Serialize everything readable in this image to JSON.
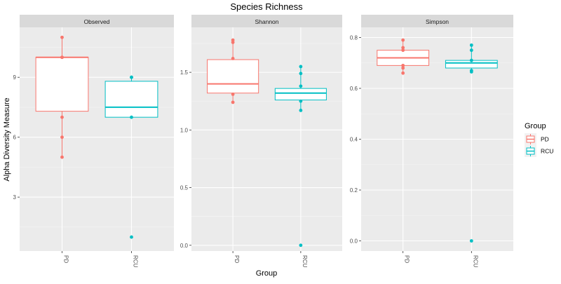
{
  "chart_data": {
    "type": "box",
    "title": "Species Richness",
    "xlabel": "Group",
    "ylabel": "Alpha Diversity Measure",
    "categories": [
      "PD",
      "RCU"
    ],
    "legend": {
      "title": "Group",
      "position": "right",
      "items": [
        {
          "label": "PD",
          "color": "#F8766D"
        },
        {
          "label": "RCU",
          "color": "#00BFC4"
        }
      ]
    },
    "colors": {
      "PD": "#F8766D",
      "RCU": "#00BFC4"
    },
    "panels": [
      {
        "strip": "Observed",
        "ylim": [
          0.3,
          11.5
        ],
        "yticks": [
          3,
          6,
          9
        ],
        "ytick_labels": [
          "3",
          "6",
          "9"
        ],
        "boxes": [
          {
            "group": "PD",
            "min": 5,
            "q1": 7.3,
            "median": 10,
            "q3": 10,
            "max": 11,
            "points": [
              11,
              10,
              10,
              10,
              7,
              6,
              5
            ]
          },
          {
            "group": "RCU",
            "min": 7,
            "q1": 7,
            "median": 7.5,
            "q3": 8.8,
            "max": 9,
            "points": [
              9,
              9,
              7,
              1
            ]
          }
        ]
      },
      {
        "strip": "Shannon",
        "ylim": [
          -0.05,
          1.89
        ],
        "yticks": [
          0,
          0.5,
          1,
          1.5
        ],
        "ytick_labels": [
          "0.0",
          "0.5",
          "1.0",
          "1.5"
        ],
        "boxes": [
          {
            "group": "PD",
            "min": 1.24,
            "q1": 1.32,
            "median": 1.4,
            "q3": 1.61,
            "max": 1.78,
            "points": [
              1.78,
              1.76,
              1.62,
              1.31,
              1.24
            ]
          },
          {
            "group": "RCU",
            "min": 1.17,
            "q1": 1.26,
            "median": 1.32,
            "q3": 1.36,
            "max": 1.55,
            "points": [
              1.55,
              1.49,
              1.38,
              1.25,
              1.17,
              0
            ]
          }
        ]
      },
      {
        "strip": "Simpson",
        "ylim": [
          -0.04,
          0.84
        ],
        "yticks": [
          0,
          0.2,
          0.4,
          0.6,
          0.8
        ],
        "ytick_labels": [
          "0.0",
          "0.2",
          "0.4",
          "0.6",
          "0.8"
        ],
        "boxes": [
          {
            "group": "PD",
            "min": 0.66,
            "q1": 0.69,
            "median": 0.72,
            "q3": 0.75,
            "max": 0.79,
            "points": [
              0.79,
              0.76,
              0.75,
              0.69,
              0.68,
              0.66
            ]
          },
          {
            "group": "RCU",
            "min": 0.67,
            "q1": 0.68,
            "median": 0.7,
            "q3": 0.71,
            "max": 0.77,
            "points": [
              0.77,
              0.75,
              0.71,
              0.67,
              0.665,
              0
            ]
          }
        ]
      }
    ]
  }
}
